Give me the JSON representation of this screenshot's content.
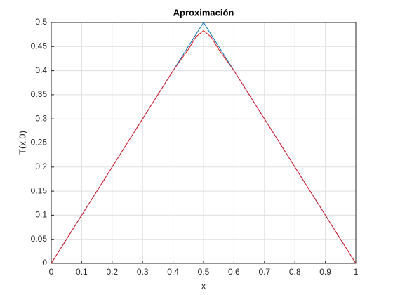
{
  "chart_data": {
    "type": "line",
    "title": "Aproximación",
    "xlabel": "x",
    "ylabel": "T(x,0)",
    "xlim": [
      0,
      1
    ],
    "ylim": [
      0,
      0.5
    ],
    "xticks": [
      0,
      0.1,
      0.2,
      0.3,
      0.4,
      0.5,
      0.6,
      0.7,
      0.8,
      0.9,
      1
    ],
    "yticks": [
      0,
      0.05,
      0.1,
      0.15,
      0.2,
      0.25,
      0.3,
      0.35,
      0.4,
      0.45,
      0.5
    ],
    "grid": true,
    "series": [
      {
        "color": "#0072bd",
        "x": [
          0,
          0.5,
          1
        ],
        "values": [
          0,
          0.5,
          0
        ]
      },
      {
        "color": "#e3161e",
        "x": [
          0,
          0.05,
          0.1,
          0.15,
          0.2,
          0.25,
          0.3,
          0.35,
          0.4,
          0.45,
          0.475,
          0.5,
          0.525,
          0.55,
          0.6,
          0.65,
          0.7,
          0.75,
          0.8,
          0.85,
          0.9,
          0.95,
          1
        ],
        "values": [
          0,
          0.05,
          0.1,
          0.15,
          0.2,
          0.25,
          0.3,
          0.35,
          0.4,
          0.444,
          0.47,
          0.483,
          0.47,
          0.444,
          0.4,
          0.35,
          0.3,
          0.25,
          0.2,
          0.15,
          0.1,
          0.05,
          0
        ]
      }
    ]
  }
}
